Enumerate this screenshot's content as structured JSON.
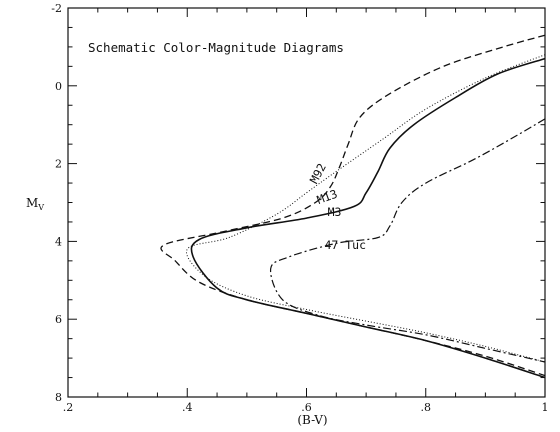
{
  "chart_data": {
    "type": "line",
    "title": "Schematic Color-Magnitude Diagrams",
    "xlabel": "(B-V)",
    "ylabel": "M_V",
    "xlim": [
      0.2,
      1.0
    ],
    "ylim": [
      8,
      -2
    ],
    "y_inverted": true,
    "grid": false,
    "x_major_ticks": [
      0.2,
      0.4,
      0.6,
      0.8,
      1.0
    ],
    "x_tick_labels": [
      ".2",
      ".4",
      ".6",
      ".8",
      "1"
    ],
    "y_major_ticks": [
      -2,
      0,
      2,
      4,
      6,
      8
    ],
    "y_tick_labels": [
      "-2",
      "0",
      "2",
      "4",
      "6",
      "8"
    ],
    "series": [
      {
        "name": "M92",
        "style": "dashed",
        "x": [
          1.0,
          0.93,
          0.83,
          0.74,
          0.69,
          0.67,
          0.655,
          0.64,
          0.615,
          0.56,
          0.46,
          0.36,
          0.38,
          0.42,
          0.5,
          0.6,
          0.7,
          0.8,
          0.9,
          1.0
        ],
        "y": [
          -1.3,
          -1.0,
          -0.5,
          0.2,
          0.8,
          1.5,
          2.1,
          2.6,
          3.0,
          3.4,
          3.75,
          4.1,
          4.5,
          5.05,
          5.5,
          5.85,
          6.2,
          6.55,
          6.95,
          7.45
        ]
      },
      {
        "name": "M13",
        "style": "dotted",
        "x": [
          1.0,
          0.9,
          0.8,
          0.73,
          0.65,
          0.6,
          0.55,
          0.47,
          0.4,
          0.43,
          0.5,
          0.6,
          0.7,
          0.8,
          0.9,
          1.0
        ],
        "y": [
          -0.8,
          -0.2,
          0.6,
          1.35,
          2.2,
          2.75,
          3.3,
          3.9,
          4.2,
          4.9,
          5.4,
          5.75,
          6.05,
          6.35,
          6.7,
          7.1
        ]
      },
      {
        "name": "M3",
        "style": "solid",
        "x": [
          1.0,
          0.92,
          0.85,
          0.78,
          0.74,
          0.72,
          0.7,
          0.68,
          0.6,
          0.5,
          0.42,
          0.41,
          0.45,
          0.5,
          0.6,
          0.7,
          0.8,
          0.9,
          1.0
        ],
        "y": [
          -0.7,
          -0.3,
          0.3,
          1.0,
          1.6,
          2.2,
          2.75,
          3.1,
          3.4,
          3.65,
          3.95,
          4.4,
          5.2,
          5.5,
          5.85,
          6.2,
          6.55,
          7.0,
          7.5
        ]
      },
      {
        "name": "47 Tuc",
        "style": "dashdot",
        "x": [
          1.0,
          0.95,
          0.88,
          0.8,
          0.76,
          0.74,
          0.72,
          0.65,
          0.57,
          0.54,
          0.56,
          0.62,
          0.7,
          0.8,
          0.9,
          1.0
        ],
        "y": [
          0.85,
          1.3,
          1.9,
          2.5,
          3.0,
          3.6,
          3.9,
          4.05,
          4.4,
          4.7,
          5.5,
          5.9,
          6.15,
          6.4,
          6.75,
          7.1
        ]
      }
    ],
    "annotations": [
      {
        "text": "M92",
        "x": 0.625,
        "y": 2.3,
        "angle": -62
      },
      {
        "text": "M13",
        "x": 0.637,
        "y": 2.95,
        "angle": -20
      },
      {
        "text": "M3",
        "x": 0.647,
        "y": 3.35,
        "angle": 0
      },
      {
        "text": "47 Tuc",
        "x": 0.665,
        "y": 4.2,
        "angle": 0
      }
    ]
  }
}
